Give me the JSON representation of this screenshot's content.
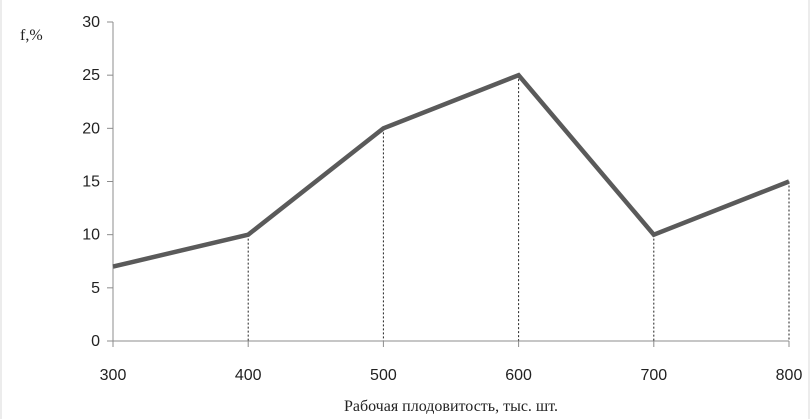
{
  "chart_data": {
    "type": "line",
    "title": "",
    "xlabel": "Рабочая плодовитость, тыс. шт.",
    "ylabel": "f,%",
    "x": [
      300,
      400,
      500,
      600,
      700,
      800
    ],
    "xticks": [
      "300",
      "400",
      "500",
      "600",
      "700",
      "800"
    ],
    "yticks": [
      "0",
      "5",
      "10",
      "15",
      "20",
      "25",
      "30"
    ],
    "xlim": [
      300,
      800
    ],
    "ylim": [
      0,
      30
    ],
    "series": [
      {
        "values": [
          7,
          10,
          20,
          25,
          10,
          15
        ]
      }
    ],
    "grid": false,
    "legend": "none",
    "drop_lines": true,
    "line_color": "#5a5a5a"
  }
}
